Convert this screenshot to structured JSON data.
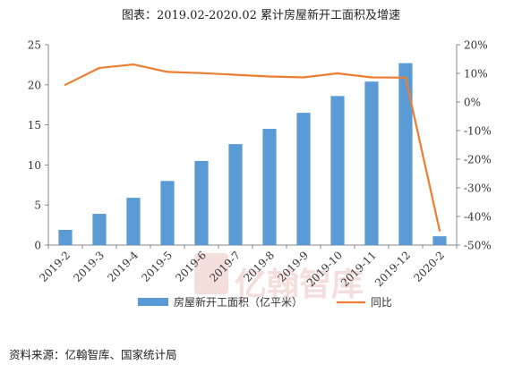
{
  "chart_data": {
    "type": "bar+line",
    "title": "图表：2019.02-2020.02 累计房屋新开工面积及增速",
    "categories": [
      "2019-2",
      "2019-3",
      "2019-4",
      "2019-5",
      "2019-6",
      "2019-7",
      "2019-8",
      "2019-9",
      "2019-10",
      "2019-11",
      "2019-12",
      "2020-2"
    ],
    "series": [
      {
        "name": "房屋新开工面积（亿平米）",
        "type": "bar",
        "axis": "left",
        "color": "#5b9bd5",
        "values": [
          1.9,
          3.9,
          5.9,
          8.0,
          10.5,
          12.6,
          14.5,
          16.5,
          18.6,
          20.4,
          22.7,
          1.1
        ]
      },
      {
        "name": "同比",
        "type": "line",
        "axis": "right",
        "color": "#ed7d31",
        "values": [
          6,
          11.9,
          13.1,
          10.5,
          10.1,
          9.5,
          8.9,
          8.6,
          10.0,
          8.6,
          8.5,
          -44.9
        ]
      }
    ],
    "y_left": {
      "min": 0,
      "max": 25,
      "ticks": [
        0,
        5,
        10,
        15,
        20,
        25
      ]
    },
    "y_right": {
      "min": -50,
      "max": 20,
      "ticks": [
        -50,
        -40,
        -30,
        -20,
        -10,
        0,
        10,
        20
      ],
      "unit": "%"
    },
    "grid": false,
    "legend_position": "bottom"
  },
  "source": "资料来源：亿翰智库、国家统计局",
  "watermark_text": "亿翰智库"
}
